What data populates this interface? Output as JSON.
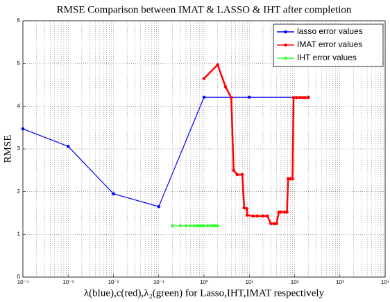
{
  "chart_data": {
    "type": "line",
    "title": "RMSE Comparison between IMAT & LASSO & IHT after completion",
    "xlabel": "λ(blue),c(red),λ₂(green) for Lasso,IHT,IMAT respectively",
    "ylabel": "RMSE",
    "xscale": "log",
    "grid": true,
    "minor_grid": true,
    "legend": "upper right",
    "xlim": [
      0.0001,
      10000
    ],
    "ylim": [
      0,
      6
    ],
    "xticks": [
      {
        "value": 0.0001,
        "label": "10⁻⁴"
      },
      {
        "value": 0.001,
        "label": "10⁻³"
      },
      {
        "value": 0.01,
        "label": "10⁻²"
      },
      {
        "value": 0.1,
        "label": "10⁻¹"
      },
      {
        "value": 1,
        "label": "10⁰"
      },
      {
        "value": 10,
        "label": "10¹"
      },
      {
        "value": 100,
        "label": "10²"
      },
      {
        "value": 1000,
        "label": "10³"
      },
      {
        "value": 10000,
        "label": "10⁴"
      }
    ],
    "yticks": [
      0,
      1,
      2,
      3,
      4,
      5,
      6
    ],
    "series": [
      {
        "name": "lasso error values",
        "color": "#0000ff",
        "x": [
          0.0001,
          0.001,
          0.01,
          0.1,
          1,
          10,
          200
        ],
        "values": [
          3.47,
          3.06,
          1.95,
          1.65,
          4.21,
          4.21,
          4.21
        ]
      },
      {
        "name": "IMAT error values",
        "color": "#ff0000",
        "x": [
          1,
          2,
          3,
          4,
          4.5,
          5.4,
          7,
          7.7,
          8.8,
          9,
          12,
          15,
          20,
          25,
          30,
          35,
          40,
          45,
          50,
          60,
          68,
          72,
          80,
          90,
          95,
          110,
          130,
          150,
          170,
          200
        ],
        "values": [
          4.65,
          4.97,
          4.45,
          4.2,
          2.5,
          2.4,
          2.4,
          1.62,
          1.6,
          1.45,
          1.43,
          1.43,
          1.43,
          1.43,
          1.25,
          1.25,
          1.25,
          1.52,
          1.52,
          1.52,
          1.52,
          2.3,
          2.3,
          2.3,
          4.2,
          4.2,
          4.2,
          4.2,
          4.2,
          4.2
        ]
      },
      {
        "name": "IHT error values",
        "color": "#33ff33",
        "x": [
          0.2,
          0.3,
          0.4,
          0.5,
          0.6,
          0.7,
          0.8,
          0.9,
          1,
          1.2,
          1.4,
          1.6,
          1.8,
          2
        ],
        "values": [
          1.2,
          1.2,
          1.2,
          1.2,
          1.2,
          1.2,
          1.2,
          1.2,
          1.2,
          1.2,
          1.2,
          1.2,
          1.2,
          1.2
        ]
      }
    ]
  }
}
